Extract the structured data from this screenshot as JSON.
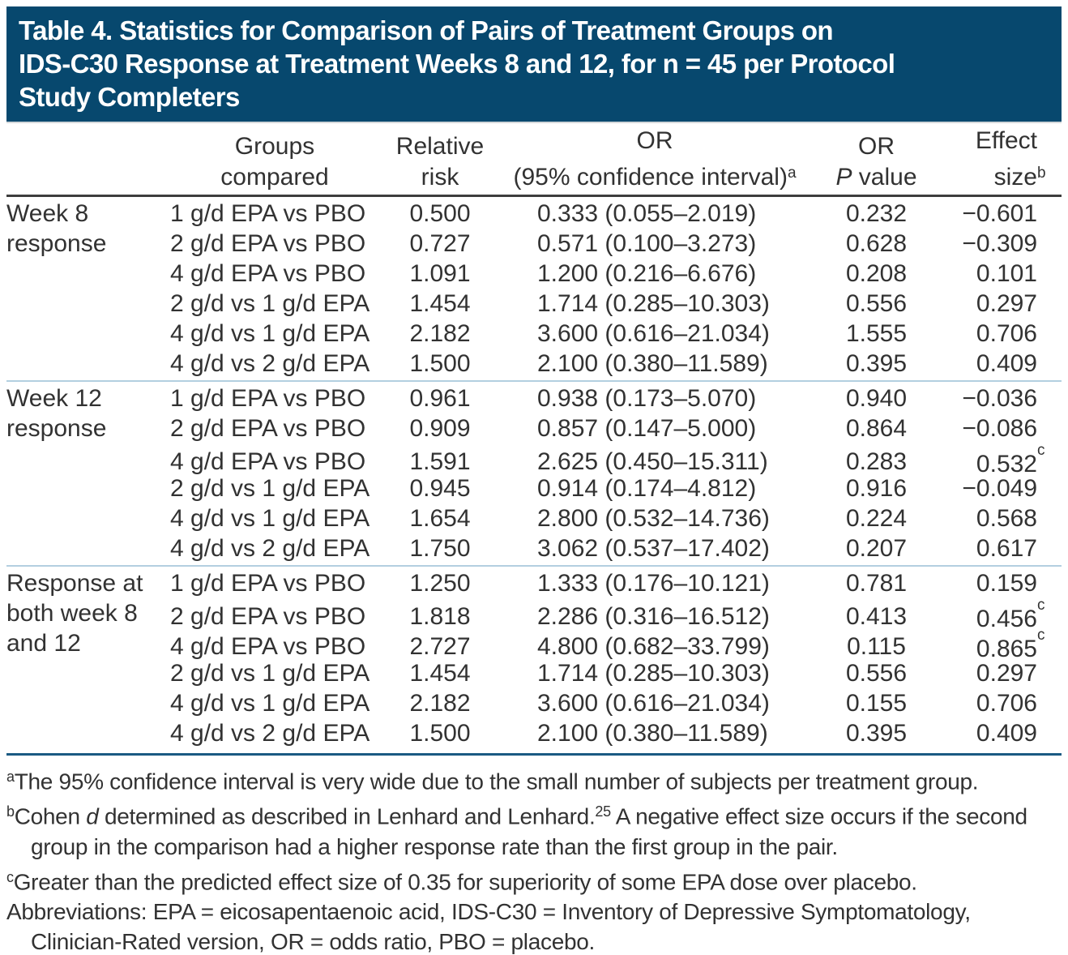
{
  "colors": {
    "banner_background": "#07486e",
    "banner_text": "#ffffff",
    "body_text": "#323232",
    "section_divider": "#b3cfe0",
    "header_underline": "#3d3d3d",
    "blue_rule": "#1a5a83"
  },
  "title": {
    "lines": [
      "Table 4. Statistics for Comparison of Pairs of Treatment Groups on",
      "IDS-C30 Response at Treatment Weeks 8 and 12, for n = 45 per Protocol",
      "Study Completers"
    ]
  },
  "table": {
    "header": {
      "groups_line1": "Groups",
      "groups_line2": "compared",
      "rr_line1": "Relative",
      "rr_line2": "risk",
      "or_line1": "OR",
      "or_line2": "(95% confidence interval)",
      "or_sup": "a",
      "p_line1": "OR",
      "p_italic": "P",
      "p_rest": " value",
      "es_label": "Effect size",
      "es_sup": "b"
    },
    "sections": [
      {
        "label_lines": [
          "Week 8",
          "response"
        ],
        "rows": [
          {
            "group": "1 g/d EPA vs PBO",
            "rr": "0.500",
            "or": "0.333 (0.055–2.019)",
            "p": "0.232",
            "es": "−0.601",
            "es_sup": ""
          },
          {
            "group": "2 g/d EPA vs PBO",
            "rr": "0.727",
            "or": "0.571 (0.100–3.273)",
            "p": "0.628",
            "es": "−0.309",
            "es_sup": ""
          },
          {
            "group": "4 g/d EPA vs PBO",
            "rr": "1.091",
            "or": "1.200 (0.216–6.676)",
            "p": "0.208",
            "es": "0.101",
            "es_sup": ""
          },
          {
            "group": "2 g/d vs 1 g/d EPA",
            "rr": "1.454",
            "or": "1.714 (0.285–10.303)",
            "p": "0.556",
            "es": "0.297",
            "es_sup": ""
          },
          {
            "group": "4 g/d vs 1 g/d EPA",
            "rr": "2.182",
            "or": "3.600 (0.616–21.034)",
            "p": "1.555",
            "es": "0.706",
            "es_sup": ""
          },
          {
            "group": "4 g/d vs 2 g/d EPA",
            "rr": "1.500",
            "or": "2.100 (0.380–11.589)",
            "p": "0.395",
            "es": "0.409",
            "es_sup": ""
          }
        ]
      },
      {
        "label_lines": [
          "Week 12",
          "response"
        ],
        "rows": [
          {
            "group": "1 g/d EPA vs PBO",
            "rr": "0.961",
            "or": "0.938 (0.173–5.070)",
            "p": "0.940",
            "es": "−0.036",
            "es_sup": ""
          },
          {
            "group": "2 g/d EPA vs PBO",
            "rr": "0.909",
            "or": "0.857 (0.147–5.000)",
            "p": "0.864",
            "es": "−0.086",
            "es_sup": ""
          },
          {
            "group": "4 g/d EPA vs PBO",
            "rr": "1.591",
            "or": "2.625 (0.450–15.311)",
            "p": "0.283",
            "es": "0.532",
            "es_sup": "c"
          },
          {
            "group": "2 g/d vs 1 g/d EPA",
            "rr": "0.945",
            "or": "0.914 (0.174–4.812)",
            "p": "0.916",
            "es": "−0.049",
            "es_sup": ""
          },
          {
            "group": "4 g/d vs 1 g/d EPA",
            "rr": "1.654",
            "or": "2.800 (0.532–14.736)",
            "p": "0.224",
            "es": "0.568",
            "es_sup": ""
          },
          {
            "group": "4 g/d vs 2 g/d EPA",
            "rr": "1.750",
            "or": "3.062 (0.537–17.402)",
            "p": "0.207",
            "es": "0.617",
            "es_sup": ""
          }
        ]
      },
      {
        "label_lines": [
          "Response at",
          "both week 8",
          "and 12"
        ],
        "rows": [
          {
            "group": "1 g/d EPA vs PBO",
            "rr": "1.250",
            "or": "1.333 (0.176–10.121)",
            "p": "0.781",
            "es": "0.159",
            "es_sup": ""
          },
          {
            "group": "2 g/d EPA vs PBO",
            "rr": "1.818",
            "or": "2.286 (0.316–16.512)",
            "p": "0.413",
            "es": "0.456",
            "es_sup": "c"
          },
          {
            "group": "4 g/d EPA vs PBO",
            "rr": "2.727",
            "or": "4.800 (0.682–33.799)",
            "p": "0.115",
            "es": "0.865",
            "es_sup": "c"
          },
          {
            "group": "2 g/d vs 1 g/d EPA",
            "rr": "1.454",
            "or": "1.714 (0.285–10.303)",
            "p": "0.556",
            "es": "0.297",
            "es_sup": ""
          },
          {
            "group": "4 g/d vs 1 g/d EPA",
            "rr": "2.182",
            "or": "3.600 (0.616–21.034)",
            "p": "0.155",
            "es": "0.706",
            "es_sup": ""
          },
          {
            "group": "4 g/d vs 2 g/d EPA",
            "rr": "1.500",
            "or": "2.100 (0.380–11.589)",
            "p": "0.395",
            "es": "0.409",
            "es_sup": ""
          }
        ]
      }
    ]
  },
  "footnotes": {
    "a": {
      "sup": "a",
      "text": "The 95% confidence interval is very wide due to the small number of subjects per treatment group."
    },
    "b": {
      "sup": "b",
      "pre": "Cohen ",
      "italic": "d",
      "mid": " determined as described in Lenhard and Lenhard.",
      "ref": "25",
      "post": " A negative effect size occurs if the second group in the comparison had a higher response rate than the first group in the pair."
    },
    "c": {
      "sup": "c",
      "text": "Greater than the predicted effect size of 0.35 for superiority of some EPA dose over placebo."
    },
    "abbrev": "Abbreviations: EPA = eicosapentaenoic acid, IDS-C30 = Inventory of Depressive Symptomatology, Clinician-Rated version, OR = odds ratio, PBO = placebo."
  }
}
